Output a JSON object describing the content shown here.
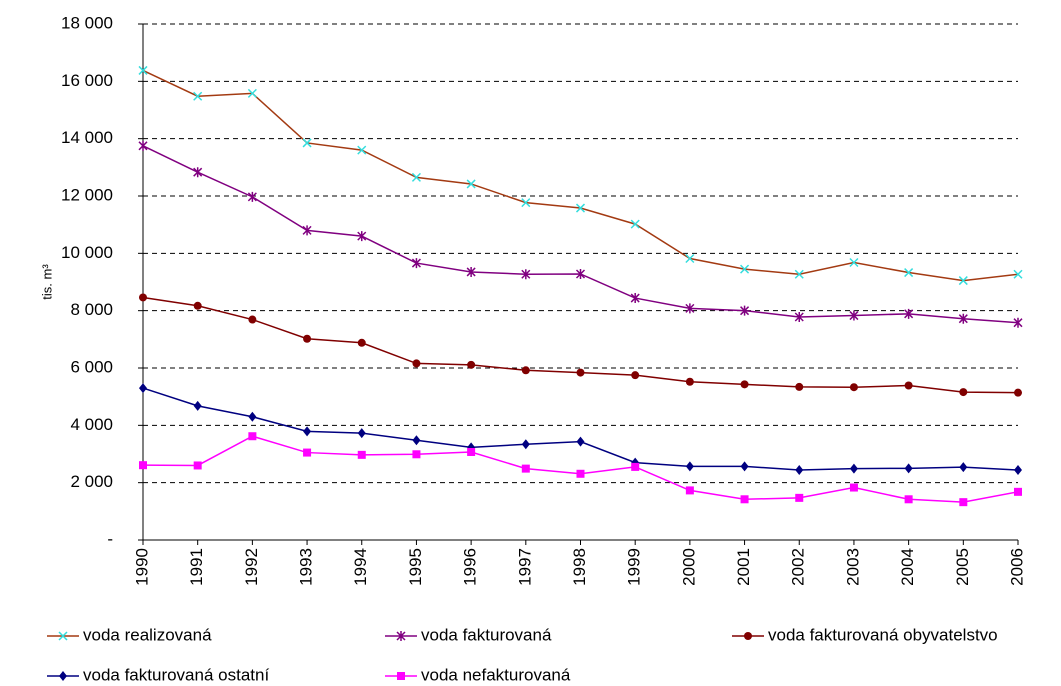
{
  "chart_data": {
    "type": "line",
    "y_label": "tis. m³",
    "categories": [
      "1990",
      "1991",
      "1992",
      "1993",
      "1994",
      "1995",
      "1996",
      "1997",
      "1998",
      "1999",
      "2000",
      "2001",
      "2002",
      "2003",
      "2004",
      "2005",
      "2006"
    ],
    "ylim": [
      0,
      18000
    ],
    "yticks": [
      {
        "value": 0,
        "label": "-"
      },
      {
        "value": 2000,
        "label": "2 000"
      },
      {
        "value": 4000,
        "label": "4 000"
      },
      {
        "value": 6000,
        "label": "6 000"
      },
      {
        "value": 8000,
        "label": "8 000"
      },
      {
        "value": 10000,
        "label": "10 000"
      },
      {
        "value": 12000,
        "label": "12 000"
      },
      {
        "value": 14000,
        "label": "14 000"
      },
      {
        "value": 16000,
        "label": "16 000"
      },
      {
        "value": 18000,
        "label": "18 000"
      }
    ],
    "grid": true,
    "legend": "bottom",
    "series": [
      {
        "name": "voda realizovaná",
        "color": "#a33a12",
        "marker_color": "#33dddd",
        "marker": "x",
        "values": [
          16380,
          15480,
          15580,
          13850,
          13600,
          12650,
          12420,
          11770,
          11580,
          11020,
          9820,
          9450,
          9270,
          9680,
          9330,
          9050,
          9270
        ]
      },
      {
        "name": "voda fakturovaná",
        "color": "#800080",
        "marker_color": "#800080",
        "marker": "star",
        "values": [
          13750,
          12830,
          11970,
          10800,
          10600,
          9660,
          9350,
          9270,
          9280,
          8440,
          8080,
          8000,
          7780,
          7830,
          7890,
          7720,
          7580
        ]
      },
      {
        "name": "voda fakturovaná obyvatelstvo",
        "color": "#800000",
        "marker_color": "#800000",
        "marker": "circle",
        "values": [
          8460,
          8170,
          7690,
          7020,
          6880,
          6160,
          6110,
          5920,
          5840,
          5750,
          5520,
          5430,
          5340,
          5330,
          5390,
          5160,
          5140
        ]
      },
      {
        "name": "voda fakturovaná ostatní",
        "color": "#000080",
        "marker_color": "#000080",
        "marker": "diamond",
        "values": [
          5300,
          4680,
          4300,
          3790,
          3730,
          3480,
          3230,
          3340,
          3430,
          2700,
          2570,
          2570,
          2440,
          2490,
          2500,
          2540,
          2440
        ]
      },
      {
        "name": "voda nefakturovaná",
        "color": "#ff00ff",
        "marker_color": "#ff00ff",
        "marker": "square",
        "values": [
          2610,
          2600,
          3620,
          3050,
          2970,
          2990,
          3070,
          2490,
          2310,
          2550,
          1730,
          1420,
          1470,
          1830,
          1420,
          1320,
          1680
        ]
      }
    ]
  }
}
